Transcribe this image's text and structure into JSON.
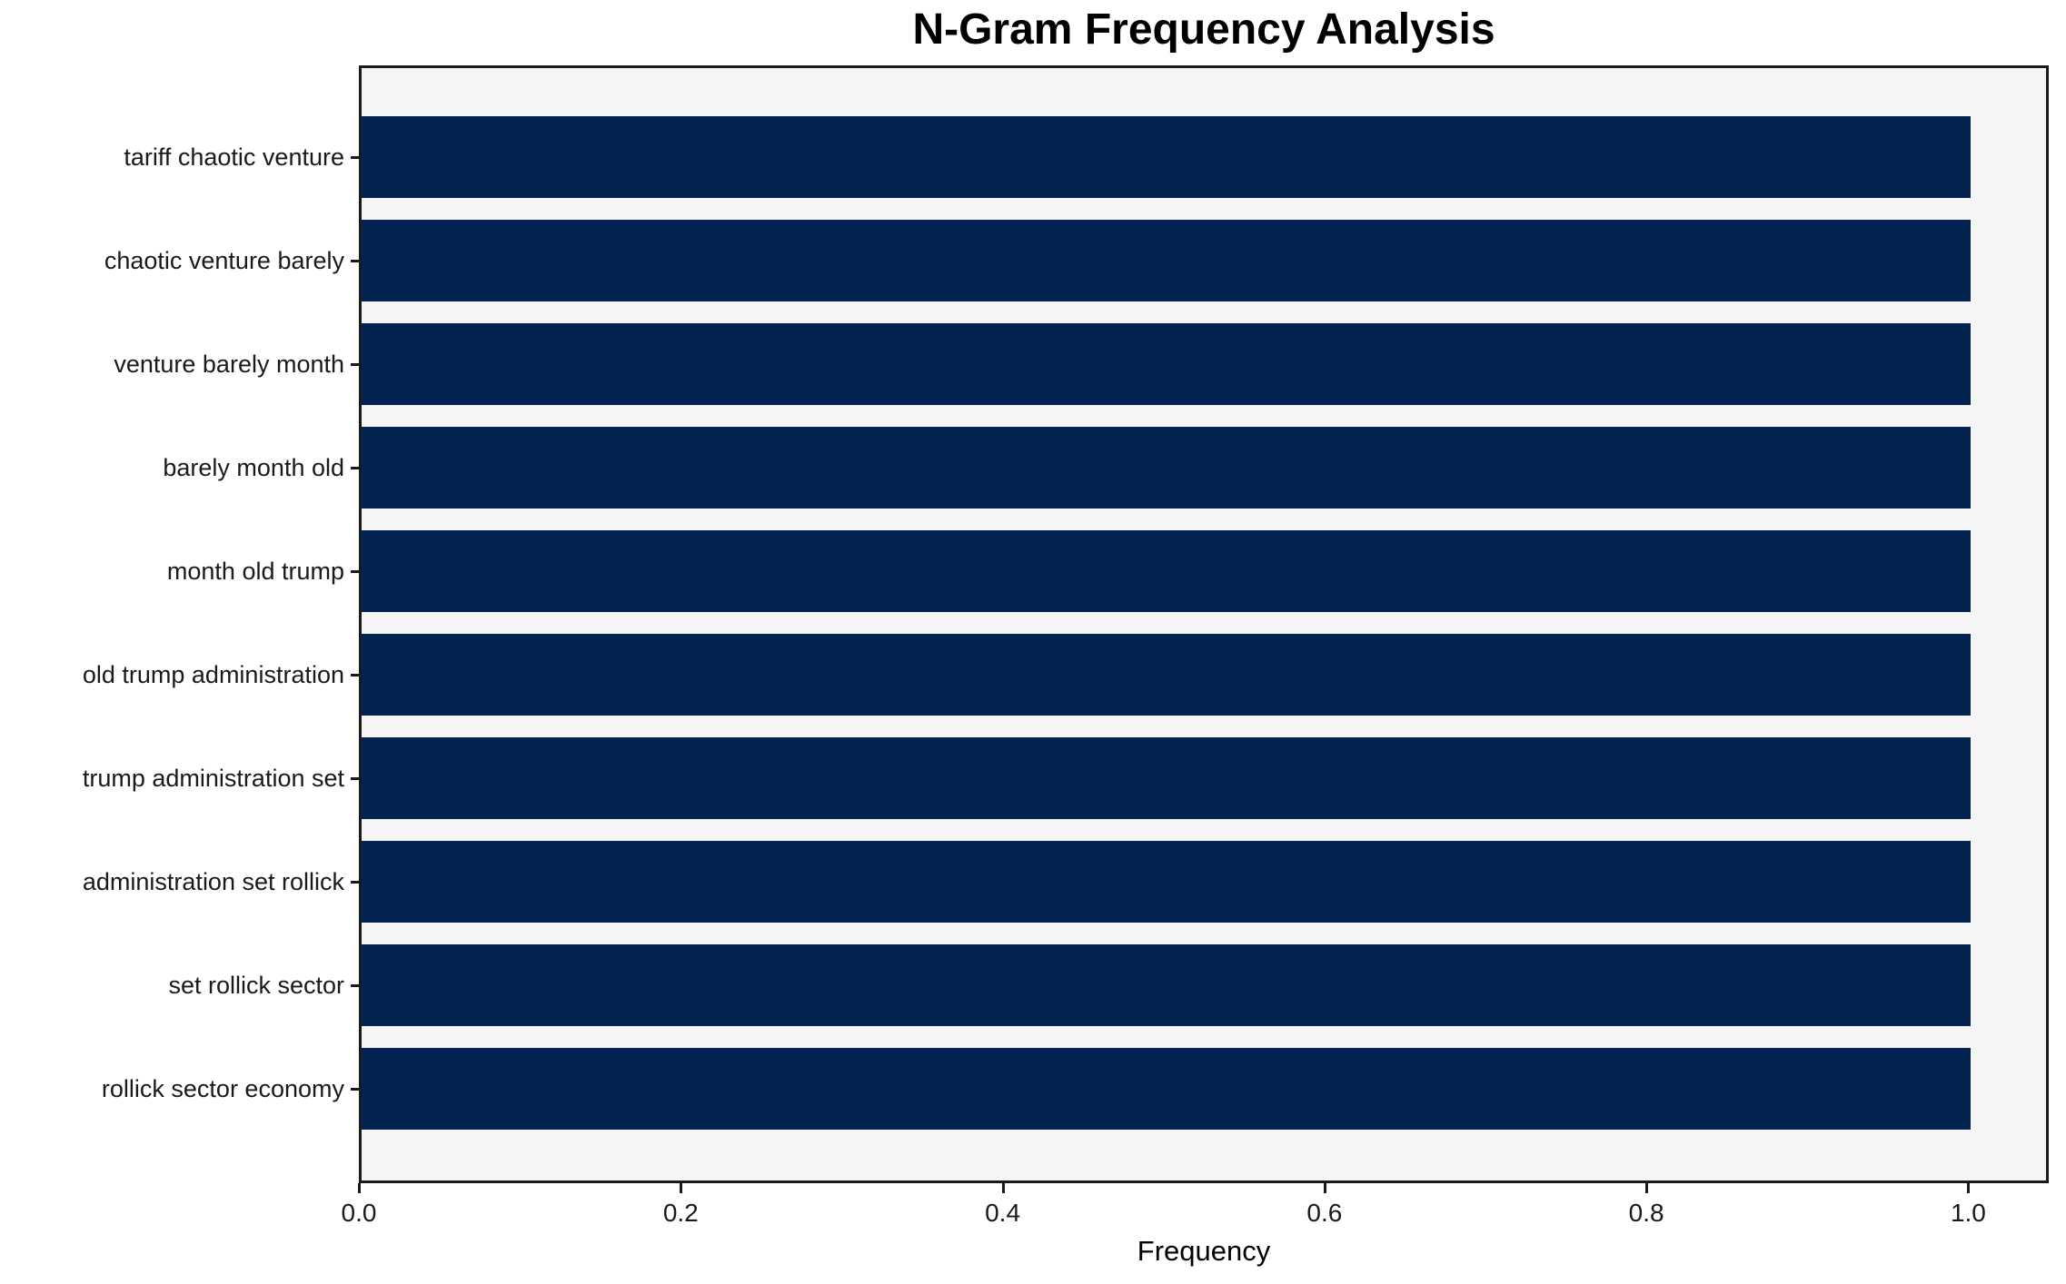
{
  "chart_data": {
    "type": "bar",
    "orientation": "horizontal",
    "title": "N-Gram Frequency Analysis",
    "xlabel": "Frequency",
    "ylabel": "",
    "categories": [
      "tariff chaotic venture",
      "chaotic venture barely",
      "venture barely month",
      "barely month old",
      "month old trump",
      "old trump administration",
      "trump administration set",
      "administration set rollick",
      "set rollick sector",
      "rollick sector economy"
    ],
    "values": [
      1.0,
      1.0,
      1.0,
      1.0,
      1.0,
      1.0,
      1.0,
      1.0,
      1.0,
      1.0
    ],
    "xlim": [
      0.0,
      1.05
    ],
    "x_ticks": [
      {
        "value": 0.0,
        "label": "0.0"
      },
      {
        "value": 0.2,
        "label": "0.2"
      },
      {
        "value": 0.4,
        "label": "0.4"
      },
      {
        "value": 0.6,
        "label": "0.6"
      },
      {
        "value": 0.8,
        "label": "0.8"
      },
      {
        "value": 1.0,
        "label": "1.0"
      }
    ],
    "grid": false,
    "legend_position": "none",
    "colors": {
      "bar": "#032450",
      "plot_background": "#f5f5f6",
      "figure_background": "#ffffff",
      "axis_spine": "#1a1a1a",
      "text": "#1a1a1a"
    }
  }
}
